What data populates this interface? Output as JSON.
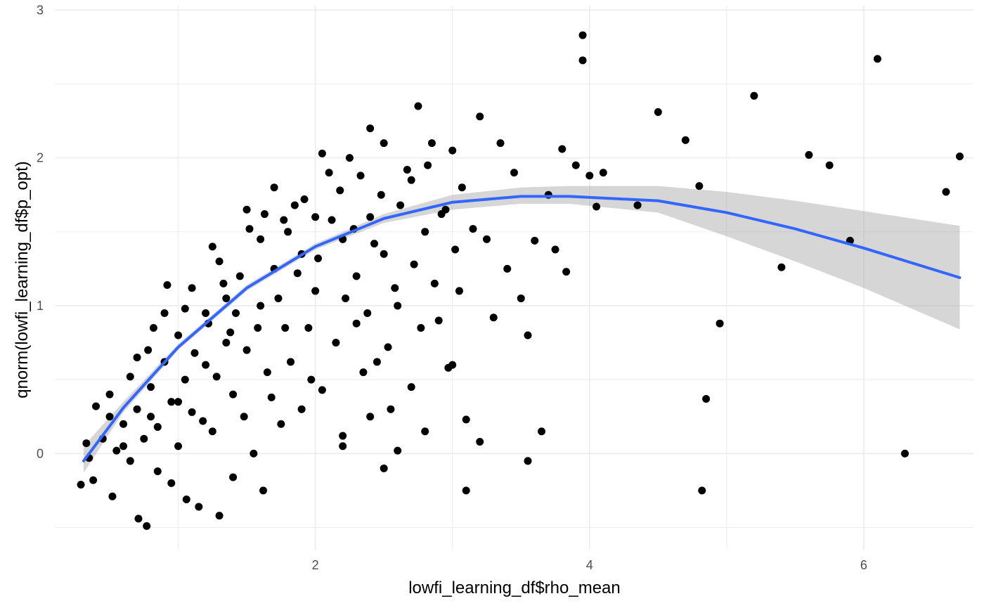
{
  "chart_data": {
    "type": "scatter",
    "title": "",
    "xlabel": "lowfi_learning_df$rho_mean",
    "ylabel": "qnorm(lowfi_learning_df$p_opt)",
    "xlim": [
      0.1,
      6.8
    ],
    "ylim": [
      -0.65,
      3.03
    ],
    "x_ticks": [
      2,
      4,
      6
    ],
    "x_tick_labels": [
      "2",
      "4",
      "6"
    ],
    "y_ticks": [
      0,
      1,
      2,
      3
    ],
    "y_tick_labels": [
      "0",
      "1",
      "2",
      "3"
    ],
    "grid": true,
    "legend": "none",
    "colors": {
      "points": "#000000",
      "smooth_line": "#3366ff",
      "confidence_band": "#999999",
      "grid": "#ebebeb"
    },
    "smooth": {
      "method": "fitted curve with confidence band",
      "x": [
        0.31,
        0.6,
        1.0,
        1.5,
        2.0,
        2.5,
        3.0,
        3.5,
        3.85,
        4.5,
        5.0,
        5.5,
        6.0,
        6.7
      ],
      "y": [
        -0.05,
        0.31,
        0.72,
        1.12,
        1.4,
        1.59,
        1.7,
        1.74,
        1.74,
        1.71,
        1.63,
        1.52,
        1.39,
        1.19
      ],
      "lower": [
        -0.13,
        0.28,
        0.7,
        1.1,
        1.38,
        1.56,
        1.65,
        1.69,
        1.69,
        1.63,
        1.47,
        1.3,
        1.12,
        0.84
      ],
      "upper": [
        0.05,
        0.35,
        0.74,
        1.14,
        1.42,
        1.62,
        1.75,
        1.8,
        1.81,
        1.81,
        1.77,
        1.71,
        1.64,
        1.54
      ]
    },
    "points": [
      [
        0.29,
        -0.21
      ],
      [
        0.33,
        0.07
      ],
      [
        0.35,
        -0.03
      ],
      [
        0.38,
        -0.18
      ],
      [
        0.4,
        0.32
      ],
      [
        0.45,
        0.1
      ],
      [
        0.5,
        0.25
      ],
      [
        0.5,
        0.4
      ],
      [
        0.52,
        -0.29
      ],
      [
        0.55,
        0.02
      ],
      [
        0.6,
        0.2
      ],
      [
        0.65,
        -0.05
      ],
      [
        0.65,
        0.52
      ],
      [
        0.7,
        0.3
      ],
      [
        0.71,
        -0.44
      ],
      [
        0.75,
        0.1
      ],
      [
        0.77,
        -0.49
      ],
      [
        0.78,
        0.7
      ],
      [
        0.8,
        0.45
      ],
      [
        0.82,
        0.85
      ],
      [
        0.85,
        0.18
      ],
      [
        0.85,
        -0.12
      ],
      [
        0.9,
        0.62
      ],
      [
        0.92,
        1.14
      ],
      [
        0.95,
        0.35
      ],
      [
        0.95,
        -0.2
      ],
      [
        1.0,
        0.8
      ],
      [
        1.0,
        0.05
      ],
      [
        1.05,
        0.5
      ],
      [
        1.06,
        -0.31
      ],
      [
        1.1,
        1.12
      ],
      [
        1.1,
        0.28
      ],
      [
        1.15,
        -0.36
      ],
      [
        1.2,
        0.95
      ],
      [
        1.2,
        0.6
      ],
      [
        1.25,
        1.4
      ],
      [
        1.25,
        0.15
      ],
      [
        1.3,
        1.3
      ],
      [
        1.3,
        -0.42
      ],
      [
        1.35,
        0.75
      ],
      [
        1.35,
        1.05
      ],
      [
        1.4,
        0.4
      ],
      [
        1.4,
        -0.16
      ],
      [
        1.45,
        1.2
      ],
      [
        1.5,
        1.65
      ],
      [
        1.5,
        0.7
      ],
      [
        1.55,
        0.0
      ],
      [
        1.6,
        1.45
      ],
      [
        1.6,
        1.0
      ],
      [
        1.62,
        -0.25
      ],
      [
        1.65,
        0.55
      ],
      [
        1.7,
        1.8
      ],
      [
        1.7,
        1.25
      ],
      [
        1.75,
        0.2
      ],
      [
        1.78,
        0.85
      ],
      [
        1.8,
        1.5
      ],
      [
        1.85,
        1.68
      ],
      [
        1.9,
        0.3
      ],
      [
        1.9,
        1.35
      ],
      [
        1.95,
        0.85
      ],
      [
        2.0,
        1.6
      ],
      [
        2.0,
        1.1
      ],
      [
        2.05,
        2.03
      ],
      [
        2.05,
        0.43
      ],
      [
        2.1,
        1.9
      ],
      [
        2.15,
        0.75
      ],
      [
        2.2,
        1.45
      ],
      [
        2.2,
        0.05
      ],
      [
        2.25,
        2.0
      ],
      [
        2.3,
        1.2
      ],
      [
        2.3,
        0.88
      ],
      [
        2.4,
        2.2
      ],
      [
        2.4,
        1.6
      ],
      [
        2.45,
        0.62
      ],
      [
        2.5,
        1.35
      ],
      [
        2.5,
        2.1
      ],
      [
        2.55,
        0.3
      ],
      [
        2.6,
        1.0
      ],
      [
        2.7,
        1.85
      ],
      [
        2.7,
        0.45
      ],
      [
        2.75,
        2.35
      ],
      [
        2.8,
        1.5
      ],
      [
        2.85,
        2.1
      ],
      [
        2.9,
        0.9
      ],
      [
        2.95,
        1.65
      ],
      [
        3.0,
        2.05
      ],
      [
        3.05,
        1.1
      ],
      [
        3.1,
        0.23
      ],
      [
        3.15,
        1.52
      ],
      [
        3.2,
        2.28
      ],
      [
        3.25,
        1.45
      ],
      [
        3.3,
        0.92
      ],
      [
        3.35,
        2.1
      ],
      [
        3.4,
        1.25
      ],
      [
        3.45,
        1.9
      ],
      [
        3.5,
        1.05
      ],
      [
        3.55,
        0.8
      ],
      [
        3.6,
        1.44
      ],
      [
        3.65,
        0.15
      ],
      [
        3.7,
        1.75
      ],
      [
        3.75,
        1.38
      ],
      [
        3.8,
        2.06
      ],
      [
        3.83,
        1.23
      ],
      [
        3.9,
        1.95
      ],
      [
        3.95,
        2.83
      ],
      [
        3.95,
        2.66
      ],
      [
        4.0,
        1.88
      ],
      [
        4.05,
        1.67
      ],
      [
        4.1,
        1.9
      ],
      [
        4.35,
        1.68
      ],
      [
        4.5,
        2.31
      ],
      [
        4.7,
        2.12
      ],
      [
        4.8,
        1.81
      ],
      [
        4.82,
        -0.25
      ],
      [
        4.85,
        0.37
      ],
      [
        4.95,
        0.88
      ],
      [
        5.2,
        2.42
      ],
      [
        5.4,
        1.26
      ],
      [
        5.6,
        2.02
      ],
      [
        5.75,
        1.95
      ],
      [
        5.9,
        1.44
      ],
      [
        6.1,
        2.67
      ],
      [
        6.3,
        0.0
      ],
      [
        6.6,
        1.77
      ],
      [
        6.7,
        2.01
      ],
      [
        0.6,
        0.05
      ],
      [
        0.7,
        0.65
      ],
      [
        0.8,
        0.25
      ],
      [
        0.9,
        0.95
      ],
      [
        1.0,
        0.35
      ],
      [
        1.05,
        0.98
      ],
      [
        1.12,
        0.68
      ],
      [
        1.18,
        0.22
      ],
      [
        1.22,
        0.88
      ],
      [
        1.28,
        0.52
      ],
      [
        1.33,
        1.15
      ],
      [
        1.38,
        0.82
      ],
      [
        1.42,
        0.95
      ],
      [
        1.48,
        0.25
      ],
      [
        1.52,
        1.52
      ],
      [
        1.58,
        0.85
      ],
      [
        1.63,
        1.62
      ],
      [
        1.68,
        0.38
      ],
      [
        1.73,
        1.05
      ],
      [
        1.77,
        1.58
      ],
      [
        1.82,
        0.62
      ],
      [
        1.87,
        1.22
      ],
      [
        1.92,
        1.72
      ],
      [
        1.97,
        0.5
      ],
      [
        2.02,
        1.32
      ],
      [
        2.12,
        1.58
      ],
      [
        2.18,
        1.78
      ],
      [
        2.22,
        1.05
      ],
      [
        2.28,
        1.52
      ],
      [
        2.33,
        1.88
      ],
      [
        2.38,
        0.95
      ],
      [
        2.43,
        1.42
      ],
      [
        2.48,
        1.75
      ],
      [
        2.53,
        0.72
      ],
      [
        2.58,
        1.12
      ],
      [
        2.62,
        1.68
      ],
      [
        2.67,
        1.92
      ],
      [
        2.72,
        1.28
      ],
      [
        2.77,
        0.85
      ],
      [
        2.82,
        1.95
      ],
      [
        2.87,
        1.15
      ],
      [
        2.92,
        1.62
      ],
      [
        2.97,
        0.58
      ],
      [
        3.02,
        1.38
      ],
      [
        3.07,
        1.8
      ],
      [
        2.2,
        0.12
      ],
      [
        2.4,
        0.25
      ],
      [
        2.5,
        -0.1
      ],
      [
        2.8,
        0.15
      ],
      [
        3.1,
        -0.25
      ],
      [
        3.2,
        0.08
      ],
      [
        2.35,
        0.55
      ],
      [
        2.6,
        0.02
      ],
      [
        3.0,
        0.6
      ],
      [
        3.55,
        -0.05
      ]
    ]
  }
}
